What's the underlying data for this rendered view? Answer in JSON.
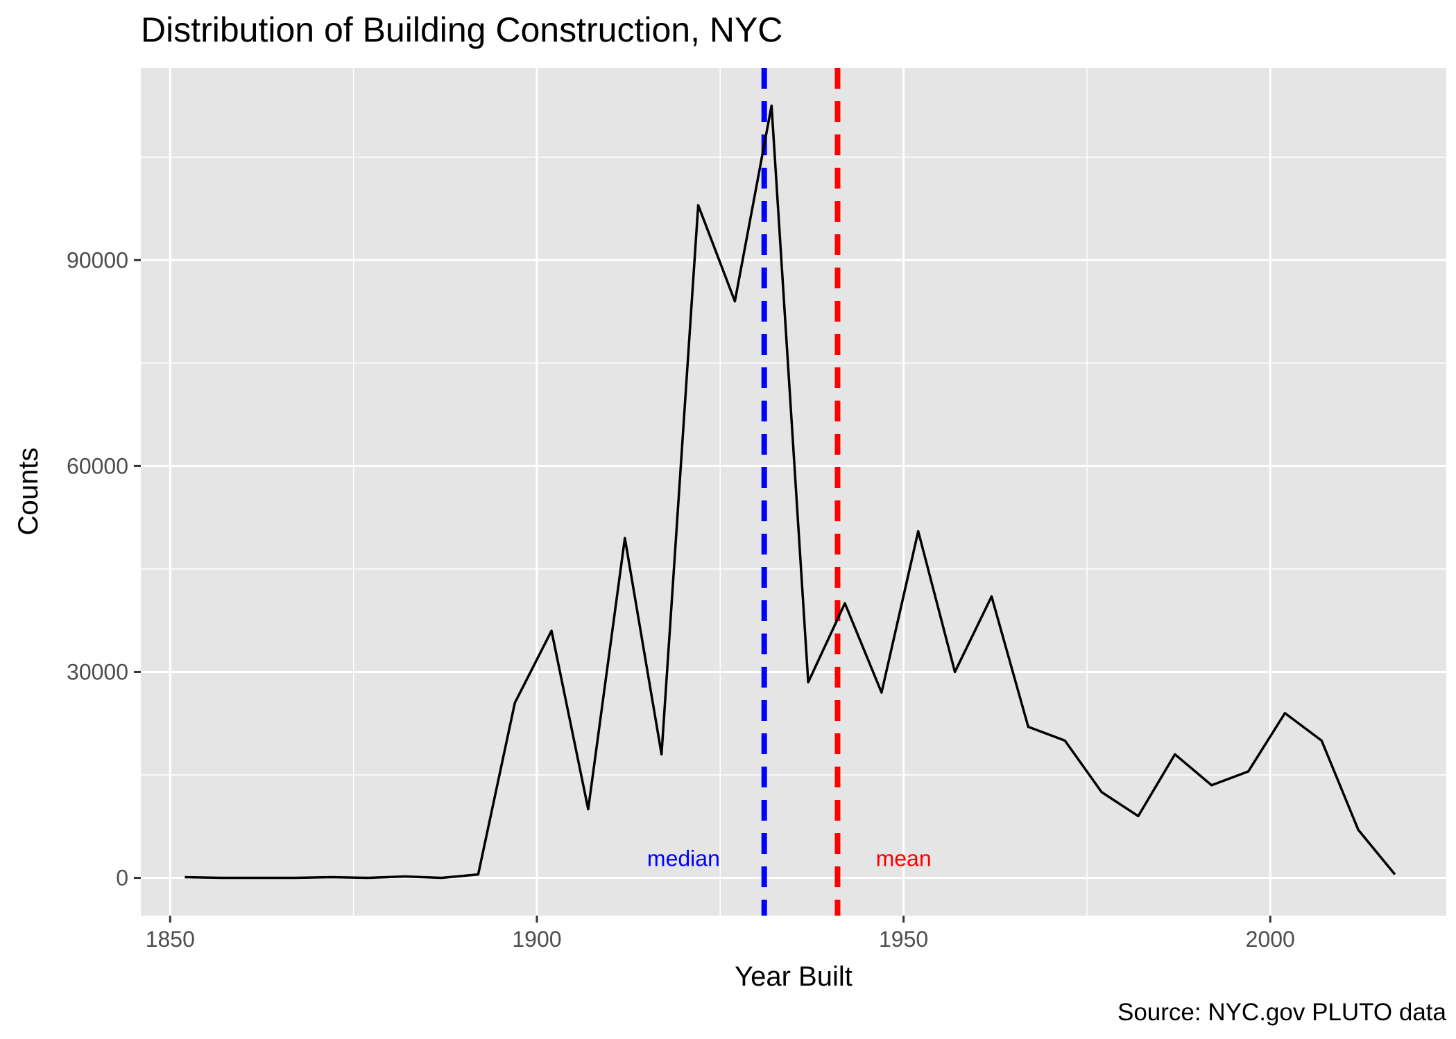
{
  "chart_data": {
    "type": "line",
    "title": "Distribution of Building Construction, NYC",
    "xlabel": "Year Built",
    "ylabel": "Counts",
    "caption": "Source: NYC.gov PLUTO data",
    "xlim": [
      1846,
      2024
    ],
    "ylim": [
      -5500,
      118000
    ],
    "x_ticks": [
      1850,
      1900,
      1950,
      2000
    ],
    "x_tick_labels": [
      "1850",
      "1900",
      "1950",
      "2000"
    ],
    "x_minor": [
      1875,
      1925,
      1975,
      2025
    ],
    "y_ticks": [
      0,
      30000,
      60000,
      90000
    ],
    "y_tick_labels": [
      "0",
      "30000",
      "60000",
      "90000"
    ],
    "y_minor": [
      15000,
      45000,
      75000,
      105000
    ],
    "grid": true,
    "background": "#e5e5e5",
    "line_color": "#000000",
    "series": [
      {
        "x": [
          1852,
          1857,
          1862,
          1867,
          1872,
          1877,
          1882,
          1887,
          1892,
          1897,
          1902,
          1907,
          1912,
          1917,
          1922,
          1927,
          1932,
          1937,
          1942,
          1947,
          1952,
          1957,
          1962,
          1967,
          1972,
          1977,
          1982,
          1987,
          1992,
          1997,
          2002,
          2007,
          2012,
          2017
        ],
        "y": [
          100,
          0,
          0,
          0,
          100,
          0,
          200,
          0,
          500,
          25500,
          36000,
          10000,
          49500,
          18000,
          98000,
          84000,
          112500,
          28500,
          40000,
          27000,
          50500,
          30000,
          41000,
          22000,
          20000,
          12500,
          9000,
          18000,
          13500,
          15500,
          24000,
          20000,
          7000,
          500
        ]
      }
    ],
    "reference_lines": [
      {
        "label": "median",
        "x": 1931,
        "color": "#0000ff",
        "label_x": 1920,
        "label_y": 1700
      },
      {
        "label": "mean",
        "x": 1941,
        "color": "#ff0000",
        "label_x": 1950,
        "label_y": 1700
      }
    ]
  }
}
